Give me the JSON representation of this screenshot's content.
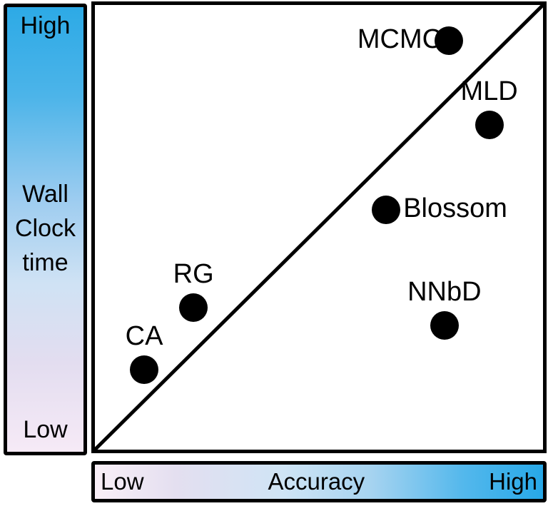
{
  "figure": {
    "y_axis": {
      "label": "Wall\nClock\ntime",
      "high_label": "High",
      "low_label": "Low",
      "gradient_top": "#2daae6",
      "gradient_bottom": "#f6eaf6"
    },
    "x_axis": {
      "label": "Accuracy",
      "low_label": "Low",
      "high_label": "High",
      "gradient_left": "#f9eff7",
      "gradient_right": "#27a8e8"
    },
    "colors": {
      "point": "#000000",
      "border": "#000000",
      "background": "#ffffff"
    }
  },
  "chart_data": {
    "type": "scatter",
    "title": "",
    "xlabel": "Accuracy (Low to High)",
    "ylabel": "Wall Clock time (Low to High)",
    "x_range": [
      0,
      1
    ],
    "y_range": [
      0,
      1
    ],
    "grid": false,
    "legend": false,
    "reference_line": {
      "type": "diagonal",
      "from": [
        0,
        0
      ],
      "to": [
        1,
        1
      ]
    },
    "points": [
      {
        "label": "MCMC",
        "x": 0.79,
        "y": 0.92,
        "label_position": "left"
      },
      {
        "label": "MLD",
        "x": 0.88,
        "y": 0.73,
        "label_position": "above"
      },
      {
        "label": "Blossom",
        "x": 0.65,
        "y": 0.54,
        "label_position": "right"
      },
      {
        "label": "NNbD",
        "x": 0.78,
        "y": 0.28,
        "label_position": "above"
      },
      {
        "label": "RG",
        "x": 0.22,
        "y": 0.32,
        "label_position": "above"
      },
      {
        "label": "CA",
        "x": 0.11,
        "y": 0.18,
        "label_position": "above"
      }
    ]
  }
}
